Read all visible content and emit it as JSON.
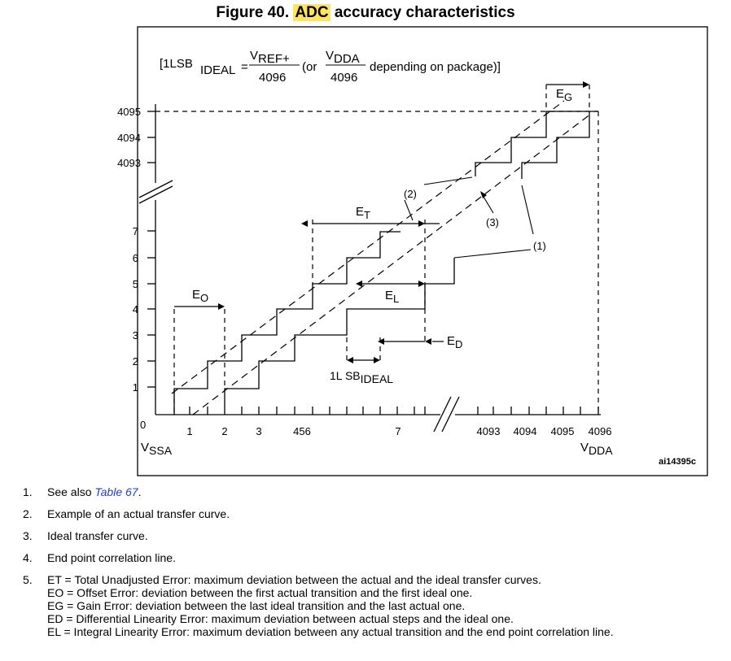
{
  "title": {
    "figure_label": "Figure 40.",
    "highlight": "ADC",
    "rest": "accuracy characteristics"
  },
  "formula": {
    "open": "[1LSB",
    "sub_ideal": "IDEAL",
    "eq": "=",
    "num1_main": "V",
    "num1_sub": "REF+",
    "den1": "4096",
    "or_text": "(or",
    "num2_main": "V",
    "num2_sub": "DDA",
    "den2": "4096",
    "tail": "depending on package)]"
  },
  "y_ticks_upper": [
    "4095",
    "4094",
    "4093"
  ],
  "y_ticks_lower": [
    "7",
    "6",
    "5",
    "4",
    "3",
    "2",
    "1"
  ],
  "origin_label": "0",
  "x_ticks_lower": [
    "1",
    "2",
    "3",
    "456",
    "7"
  ],
  "x_ticks_upper": [
    "4093",
    "4094",
    "4095",
    "4096"
  ],
  "vssa": {
    "main": "V",
    "sub": "SSA"
  },
  "vdda": {
    "main": "V",
    "sub": "DDA"
  },
  "ref_code": "ai14395c",
  "error_labels": {
    "eg": {
      "main": "E",
      "sub": "G"
    },
    "et": {
      "main": "E",
      "sub": "T"
    },
    "eo": {
      "main": "E",
      "sub": "O"
    },
    "el": {
      "main": "E",
      "sub": "L"
    },
    "ed": {
      "main": "E",
      "sub": "D"
    },
    "lsb": {
      "main": "1L SB",
      "sub": "IDEAL"
    }
  },
  "callouts": {
    "c1": "(1)",
    "c2": "(2)",
    "c3": "(3)"
  },
  "notes": [
    {
      "num": "1.",
      "pre": "See also ",
      "link": "Table 67",
      "post": "."
    },
    {
      "num": "2.",
      "text": "Example of an actual transfer curve."
    },
    {
      "num": "3.",
      "text": "Ideal transfer curve."
    },
    {
      "num": "4.",
      "text": "End point correlation line."
    },
    {
      "num": "5.",
      "lines": [
        "ET = Total Unadjusted Error: maximum deviation between the actual and the ideal transfer curves.",
        "EO = Offset Error: deviation between the first actual transition and the first ideal one.",
        "EG = Gain Error: deviation between the last ideal transition and the last actual one.",
        "ED = Differential Linearity Error: maximum deviation between actual steps and the ideal one.",
        "EL = Integral Linearity Error: maximum deviation between any actual transition and the end point correlation line."
      ]
    }
  ]
}
